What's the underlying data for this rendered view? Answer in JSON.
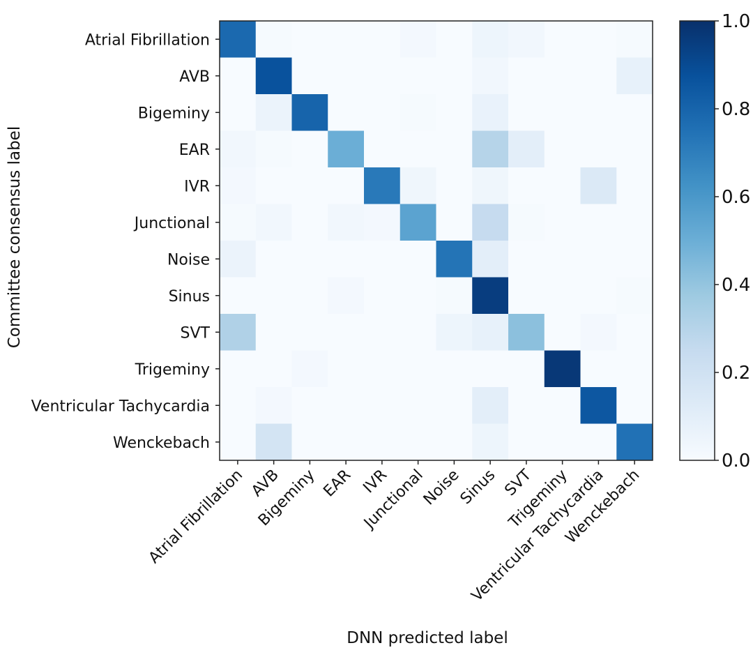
{
  "chart_data": {
    "type": "heatmap",
    "title": "",
    "xlabel": "DNN predicted label",
    "ylabel": "Committee consensus label",
    "x_categories": [
      "Atrial Fibrillation",
      "AVB",
      "Bigeminy",
      "EAR",
      "IVR",
      "Junctional",
      "Noise",
      "Sinus",
      "SVT",
      "Trigeminy",
      "Ventricular Tachycardia",
      "Wenckebach"
    ],
    "y_categories": [
      "Atrial Fibrillation",
      "AVB",
      "Bigeminy",
      "EAR",
      "IVR",
      "Junctional",
      "Noise",
      "Sinus",
      "SVT",
      "Trigeminy",
      "Ventricular Tachycardia",
      "Wenckebach"
    ],
    "values": [
      [
        0.78,
        0.01,
        0.0,
        0.0,
        0.0,
        0.02,
        0.0,
        0.05,
        0.03,
        0.0,
        0.0,
        0.01
      ],
      [
        0.0,
        0.87,
        0.0,
        0.0,
        0.0,
        0.0,
        0.0,
        0.03,
        0.0,
        0.0,
        0.0,
        0.08
      ],
      [
        0.0,
        0.06,
        0.8,
        0.0,
        0.0,
        0.01,
        0.0,
        0.07,
        0.0,
        0.0,
        0.0,
        0.0
      ],
      [
        0.03,
        0.01,
        0.0,
        0.5,
        0.0,
        0.0,
        0.0,
        0.3,
        0.1,
        0.0,
        0.0,
        0.0
      ],
      [
        0.02,
        0.0,
        0.0,
        0.0,
        0.72,
        0.04,
        0.0,
        0.04,
        0.0,
        0.0,
        0.14,
        0.0
      ],
      [
        0.01,
        0.03,
        0.0,
        0.03,
        0.02,
        0.55,
        0.0,
        0.25,
        0.01,
        0.0,
        0.0,
        0.0
      ],
      [
        0.06,
        0.0,
        0.0,
        0.0,
        0.0,
        0.0,
        0.74,
        0.1,
        0.0,
        0.0,
        0.0,
        0.0
      ],
      [
        0.0,
        0.0,
        0.0,
        0.02,
        0.0,
        0.0,
        0.01,
        0.95,
        0.0,
        0.0,
        0.0,
        0.01
      ],
      [
        0.32,
        0.0,
        0.0,
        0.0,
        0.0,
        0.0,
        0.05,
        0.08,
        0.42,
        0.0,
        0.02,
        0.0
      ],
      [
        0.0,
        0.0,
        0.02,
        0.0,
        0.0,
        0.0,
        0.0,
        0.0,
        0.0,
        0.97,
        0.0,
        0.0
      ],
      [
        0.0,
        0.02,
        0.0,
        0.0,
        0.0,
        0.0,
        0.0,
        0.1,
        0.0,
        0.0,
        0.85,
        0.0
      ],
      [
        0.0,
        0.18,
        0.0,
        0.0,
        0.0,
        0.0,
        0.0,
        0.05,
        0.0,
        0.0,
        0.0,
        0.75
      ]
    ],
    "colormap": "Blues",
    "vmin": 0.0,
    "vmax": 1.0,
    "colorbar": {
      "ticks": [
        0.0,
        0.2,
        0.4,
        0.6,
        0.8,
        1.0
      ],
      "tick_labels": [
        "0.0",
        "0.2",
        "0.4",
        "0.6",
        "0.8",
        "1.0"
      ],
      "placement": "right"
    },
    "grid": false
  }
}
